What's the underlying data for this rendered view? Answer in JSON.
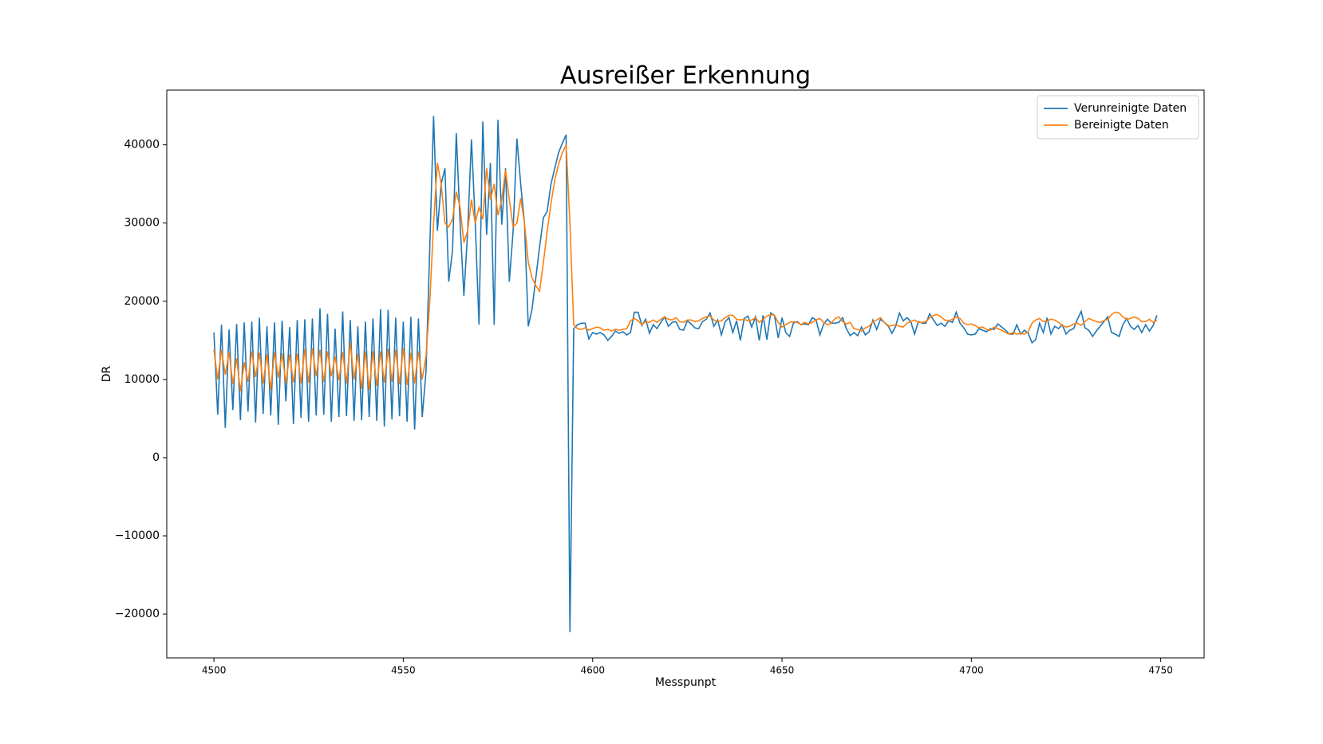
{
  "chart_data": {
    "type": "line",
    "title": "Ausreißer Erkennung",
    "x_label": "Messpunpt",
    "y_label": "DR",
    "x": [
      4500,
      4501,
      4502,
      4503,
      4504,
      4505,
      4506,
      4507,
      4508,
      4509,
      4510,
      4511,
      4512,
      4513,
      4514,
      4515,
      4516,
      4517,
      4518,
      4519,
      4520,
      4521,
      4522,
      4523,
      4524,
      4525,
      4526,
      4527,
      4528,
      4529,
      4530,
      4531,
      4532,
      4533,
      4534,
      4535,
      4536,
      4537,
      4538,
      4539,
      4540,
      4541,
      4542,
      4543,
      4544,
      4545,
      4546,
      4547,
      4548,
      4549,
      4550,
      4551,
      4552,
      4553,
      4554,
      4555,
      4556,
      4557,
      4558,
      4559,
      4560,
      4561,
      4562,
      4563,
      4564,
      4565,
      4566,
      4567,
      4568,
      4569,
      4570,
      4571,
      4572,
      4573,
      4574,
      4575,
      4576,
      4577,
      4578,
      4579,
      4580,
      4581,
      4582,
      4583,
      4584,
      4585,
      4586,
      4587,
      4588,
      4589,
      4590,
      4591,
      4592,
      4593,
      4594,
      4595,
      4596,
      4597,
      4598,
      4599,
      4600,
      4601,
      4602,
      4603,
      4604,
      4605,
      4606,
      4607,
      4608,
      4609,
      4610,
      4611,
      4612,
      4613,
      4614,
      4615,
      4616,
      4617,
      4618,
      4619,
      4620,
      4621,
      4622,
      4623,
      4624,
      4625,
      4626,
      4627,
      4628,
      4629,
      4630,
      4631,
      4632,
      4633,
      4634,
      4635,
      4636,
      4637,
      4638,
      4639,
      4640,
      4641,
      4642,
      4643,
      4644,
      4645,
      4646,
      4647,
      4648,
      4649,
      4650,
      4651,
      4652,
      4653,
      4654,
      4655,
      4656,
      4657,
      4658,
      4659,
      4660,
      4661,
      4662,
      4663,
      4664,
      4665,
      4666,
      4667,
      4668,
      4669,
      4670,
      4671,
      4672,
      4673,
      4674,
      4675,
      4676,
      4677,
      4678,
      4679,
      4680,
      4681,
      4682,
      4683,
      4684,
      4685,
      4686,
      4687,
      4688,
      4689,
      4690,
      4691,
      4692,
      4693,
      4694,
      4695,
      4696,
      4697,
      4698,
      4699,
      4700,
      4701,
      4702,
      4703,
      4704,
      4705,
      4706,
      4707,
      4708,
      4709,
      4710,
      4711,
      4712,
      4713,
      4714,
      4715,
      4716,
      4717,
      4718,
      4719,
      4720,
      4721,
      4722,
      4723,
      4724,
      4725,
      4726,
      4727,
      4728,
      4729,
      4730,
      4731,
      4732,
      4733,
      4734,
      4735,
      4736,
      4737,
      4738,
      4739,
      4740,
      4741,
      4742,
      4743,
      4744,
      4745,
      4746,
      4747,
      4748,
      4749
    ],
    "series": [
      {
        "name": "Verunreinigte Daten",
        "color": "#1f77b4",
        "values": [
          16000,
          5500,
          17000,
          3800,
          16400,
          6100,
          17100,
          4800,
          17300,
          5900,
          17400,
          4500,
          17900,
          5600,
          16800,
          5400,
          17300,
          4200,
          17500,
          7200,
          16700,
          4300,
          17600,
          5100,
          17700,
          4600,
          17800,
          5400,
          19100,
          5500,
          18400,
          4600,
          16500,
          5200,
          18700,
          5300,
          17600,
          4700,
          16800,
          4800,
          17400,
          5200,
          17800,
          4700,
          19000,
          4000,
          18900,
          4900,
          17900,
          5300,
          17400,
          4600,
          18000,
          3600,
          17800,
          5200,
          11000,
          27000,
          43700,
          29000,
          35000,
          37000,
          22500,
          26500,
          41500,
          30000,
          20700,
          29000,
          40700,
          30000,
          17000,
          43000,
          28500,
          37700,
          17000,
          43200,
          29800,
          37000,
          22500,
          29000,
          40800,
          35000,
          30000,
          16800,
          19000,
          23000,
          27000,
          30700,
          31500,
          35000,
          37000,
          39000,
          40200,
          41300,
          -22300,
          16500,
          17000,
          17200,
          17200,
          15200,
          16000,
          15800,
          16000,
          15700,
          15000,
          15500,
          16200,
          15900,
          16100,
          15700,
          16000,
          18600,
          18600,
          16900,
          17700,
          15900,
          17000,
          16500,
          17300,
          18000,
          16800,
          17300,
          17400,
          16400,
          16300,
          17500,
          17100,
          16600,
          16500,
          17400,
          17700,
          18500,
          16800,
          17600,
          15700,
          17400,
          17900,
          16000,
          17500,
          15000,
          17800,
          18100,
          16700,
          18000,
          15000,
          18200,
          15100,
          18500,
          18200,
          15300,
          17900,
          16000,
          15500,
          17200,
          17400,
          17000,
          17100,
          17000,
          17900,
          17600,
          15700,
          17100,
          17700,
          17200,
          17200,
          17300,
          17900,
          16500,
          15600,
          16000,
          15600,
          16700,
          15700,
          16100,
          17600,
          16400,
          17700,
          17300,
          16900,
          15900,
          16800,
          18500,
          17500,
          17900,
          17400,
          15800,
          17400,
          17200,
          17200,
          18400,
          17600,
          16900,
          17200,
          16800,
          17500,
          17300,
          18600,
          17200,
          16600,
          15800,
          15700,
          15800,
          16500,
          16300,
          16100,
          16500,
          16400,
          17100,
          16700,
          16300,
          15800,
          15800,
          17000,
          15800,
          16300,
          15900,
          14700,
          15100,
          17200,
          16000,
          17900,
          15800,
          16800,
          16500,
          17000,
          15800,
          16300,
          16500,
          17700,
          18700,
          16600,
          16300,
          15500,
          16200,
          16800,
          17400,
          18000,
          16000,
          15800,
          15500,
          17000,
          17800,
          16800,
          16400,
          16900,
          16000,
          17000,
          16200,
          16900,
          18200
        ]
      },
      {
        "name": "Bereinigte Daten",
        "color": "#ff7f0e",
        "values": [
          13800,
          10000,
          13800,
          10600,
          13500,
          9400,
          12700,
          8500,
          12200,
          9700,
          13600,
          10300,
          13400,
          9500,
          13200,
          8700,
          13500,
          10200,
          13300,
          9500,
          13200,
          9600,
          13300,
          9500,
          13900,
          9600,
          14000,
          10400,
          13800,
          9700,
          13600,
          10400,
          12900,
          9900,
          13500,
          9500,
          14700,
          10000,
          13300,
          8800,
          13600,
          8700,
          13600,
          9200,
          13600,
          9600,
          13900,
          9700,
          13800,
          9400,
          14000,
          9300,
          13400,
          9500,
          13600,
          10000,
          13000,
          20000,
          30000,
          37700,
          35000,
          30000,
          29500,
          30500,
          34000,
          32000,
          27500,
          29000,
          33000,
          30000,
          32000,
          30500,
          37000,
          33000,
          35000,
          31000,
          33000,
          36800,
          33000,
          29500,
          30000,
          33200,
          30000,
          25000,
          23000,
          22000,
          21300,
          25000,
          29000,
          32500,
          35500,
          37500,
          39000,
          40000,
          30000,
          17000,
          16500,
          16400,
          16600,
          16300,
          16500,
          16700,
          16600,
          16300,
          16400,
          16200,
          16400,
          16300,
          16400,
          16500,
          17500,
          17800,
          17500,
          17000,
          17400,
          17300,
          17600,
          17300,
          17700,
          18000,
          17700,
          17600,
          17900,
          17400,
          17300,
          17600,
          17600,
          17400,
          17500,
          17800,
          18000,
          18100,
          17600,
          17400,
          17500,
          17900,
          18200,
          18200,
          17700,
          17600,
          17700,
          17500,
          17600,
          17900,
          17300,
          17700,
          18100,
          18300,
          18200,
          17300,
          16700,
          17000,
          17300,
          17400,
          17300,
          17000,
          17300,
          17100,
          17300,
          17600,
          17800,
          17300,
          17000,
          17200,
          17800,
          18000,
          17400,
          17100,
          17300,
          16500,
          16400,
          16200,
          16600,
          16800,
          17400,
          17600,
          17900,
          17300,
          16800,
          16900,
          17000,
          16800,
          16700,
          17200,
          17400,
          17600,
          17300,
          17300,
          17400,
          17900,
          18200,
          18300,
          18000,
          17600,
          17500,
          17700,
          18000,
          17800,
          17200,
          17000,
          17100,
          16900,
          16600,
          16700,
          16400,
          16300,
          16700,
          16500,
          16300,
          16000,
          15800,
          16000,
          15800,
          15900,
          15800,
          16100,
          17200,
          17600,
          17800,
          17400,
          17500,
          17700,
          17600,
          17300,
          16900,
          16700,
          16800,
          17100,
          17200,
          16900,
          17400,
          17800,
          17600,
          17400,
          17300,
          17500,
          17700,
          18300,
          18600,
          18500,
          18000,
          17700,
          17800,
          18000,
          17800,
          17400,
          17400,
          17700,
          17300,
          17600
        ]
      }
    ],
    "xlim": [
      4487.55,
      4761.45
    ],
    "ylim": [
      -25600,
      47000
    ],
    "xticks": [
      4500,
      4550,
      4600,
      4650,
      4700,
      4750
    ],
    "yticks": [
      {
        "value": -20000,
        "label": "−20000"
      },
      {
        "value": -10000,
        "label": "−10000"
      },
      0,
      10000,
      20000,
      30000,
      40000
    ],
    "legend": "upper right"
  }
}
